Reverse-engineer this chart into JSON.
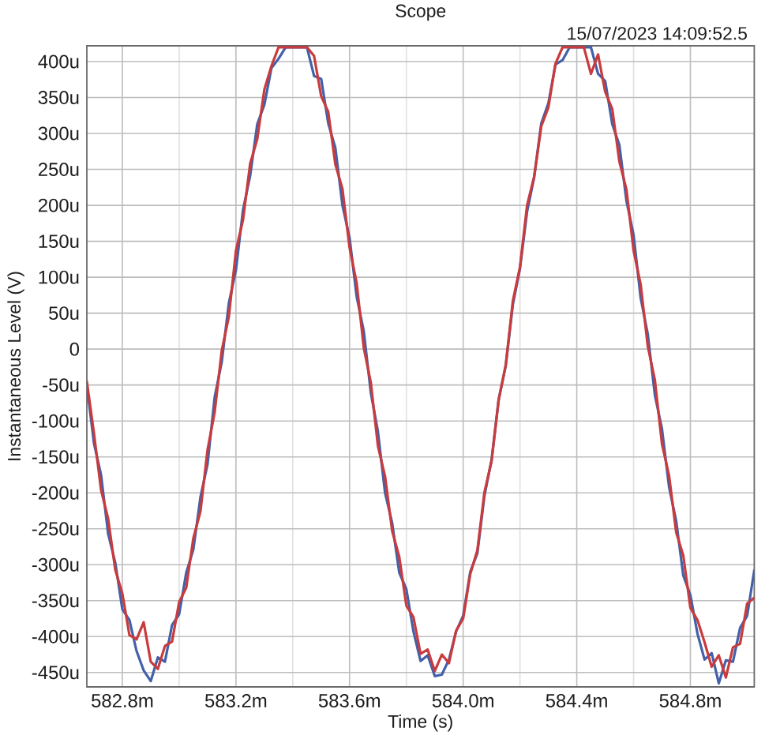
{
  "chart_data": {
    "type": "line",
    "title": "Scope",
    "subtitle": "15/07/2023 14:09:52.5",
    "xlabel": "Time (s)",
    "ylabel": "Instantaneous Level (V)",
    "xlim": [
      582.675,
      585.025
    ],
    "ylim": [
      -470,
      422
    ],
    "xticks": [
      {
        "value": 582.8,
        "label": "582.8m"
      },
      {
        "value": 583.0,
        "label": null
      },
      {
        "value": 583.2,
        "label": "583.2m"
      },
      {
        "value": 583.4,
        "label": null
      },
      {
        "value": 583.6,
        "label": "583.6m"
      },
      {
        "value": 583.8,
        "label": null
      },
      {
        "value": 584.0,
        "label": "584.0m"
      },
      {
        "value": 584.2,
        "label": null
      },
      {
        "value": 584.4,
        "label": "584.4m"
      },
      {
        "value": 584.6,
        "label": null
      },
      {
        "value": 584.8,
        "label": "584.8m"
      }
    ],
    "yticks": [
      {
        "value": 400,
        "label": "400u"
      },
      {
        "value": 350,
        "label": "350u"
      },
      {
        "value": 300,
        "label": "300u"
      },
      {
        "value": 250,
        "label": "250u"
      },
      {
        "value": 200,
        "label": "200u"
      },
      {
        "value": 150,
        "label": "150u"
      },
      {
        "value": 100,
        "label": "100u"
      },
      {
        "value": 50,
        "label": "50u"
      },
      0,
      {
        "value": -50,
        "label": "-50u"
      },
      {
        "value": -100,
        "label": "-100u"
      },
      {
        "value": -150,
        "label": "-150u"
      },
      {
        "value": -200,
        "label": "-200u"
      },
      {
        "value": -250,
        "label": "-250u"
      },
      {
        "value": -300,
        "label": "-300u"
      },
      {
        "value": -350,
        "label": "-350u"
      },
      {
        "value": -400,
        "label": "-400u"
      },
      {
        "value": -450,
        "label": "-450u"
      }
    ],
    "grid": true,
    "line_style": "solid",
    "x": [
      582.675,
      582.7,
      582.725,
      582.75,
      582.775,
      582.8,
      582.825,
      582.85,
      582.875,
      582.9,
      582.925,
      582.95,
      582.975,
      583.0,
      583.025,
      583.05,
      583.075,
      583.1,
      583.125,
      583.15,
      583.175,
      583.2,
      583.225,
      583.25,
      583.275,
      583.3,
      583.325,
      583.35,
      583.375,
      583.4,
      583.425,
      583.45,
      583.475,
      583.5,
      583.525,
      583.55,
      583.575,
      583.6,
      583.625,
      583.65,
      583.675,
      583.7,
      583.725,
      583.75,
      583.775,
      583.8,
      583.825,
      583.85,
      583.875,
      583.9,
      583.925,
      583.95,
      583.975,
      584.0,
      584.025,
      584.05,
      584.075,
      584.1,
      584.125,
      584.15,
      584.175,
      584.2,
      584.225,
      584.25,
      584.275,
      584.3,
      584.325,
      584.35,
      584.375,
      584.4,
      584.425,
      584.45,
      584.475,
      584.5,
      584.525,
      584.55,
      584.575,
      584.6,
      584.625,
      584.65,
      584.675,
      584.7,
      584.725,
      584.75,
      584.775,
      584.8,
      584.825,
      584.85,
      584.875,
      584.9,
      584.925,
      584.95,
      584.975,
      585.0,
      585.025
    ],
    "series": [
      {
        "color": "#4361a8",
        "values": [
          -50,
          -131,
          -175,
          -257,
          -297,
          -362,
          -377,
          -420,
          -447,
          -462,
          -429,
          -435,
          -384,
          -369,
          -311,
          -279,
          -206,
          -160,
          -67,
          -18,
          64,
          110,
          194,
          241,
          313,
          340,
          391,
          404,
          420,
          420,
          420,
          420,
          380,
          376,
          314,
          280,
          200,
          155,
          73,
          25,
          -61,
          -115,
          -200,
          -242,
          -311,
          -334,
          -393,
          -434,
          -426,
          -455,
          -453,
          -432,
          -393,
          -371,
          -310,
          -284,
          -204,
          -154,
          -70,
          -23,
          62,
          112,
          191,
          239,
          314,
          342,
          396,
          402,
          420,
          420,
          420,
          420,
          383,
          373,
          313,
          284,
          206,
          159,
          71,
          21,
          -64,
          -111,
          -192,
          -239,
          -315,
          -342,
          -396,
          -432,
          -423,
          -465,
          -433,
          -435,
          -388,
          -371,
          -308
        ]
      },
      {
        "color": "#c93b3d",
        "values": [
          -45,
          -117,
          -196,
          -236,
          -307,
          -340,
          -398,
          -404,
          -380,
          -435,
          -445,
          -413,
          -407,
          -352,
          -332,
          -263,
          -226,
          -140,
          -88,
          -2,
          45,
          137,
          180,
          258,
          292,
          361,
          394,
          420,
          420,
          420,
          420,
          420,
          408,
          352,
          330,
          257,
          223,
          141,
          92,
          2,
          -47,
          -135,
          -177,
          -253,
          -289,
          -357,
          -373,
          -424,
          -418,
          -448,
          -425,
          -437,
          -392,
          -375,
          -313,
          -280,
          -199,
          -156,
          -71,
          -22,
          67,
          114,
          200,
          240,
          310,
          336,
          397,
          420,
          420,
          420,
          420,
          383,
          410,
          358,
          334,
          261,
          222,
          137,
          90,
          4,
          -43,
          -132,
          -176,
          -255,
          -287,
          -360,
          -377,
          -408,
          -442,
          -426,
          -457,
          -415,
          -410,
          -354,
          -346
        ]
      }
    ]
  }
}
